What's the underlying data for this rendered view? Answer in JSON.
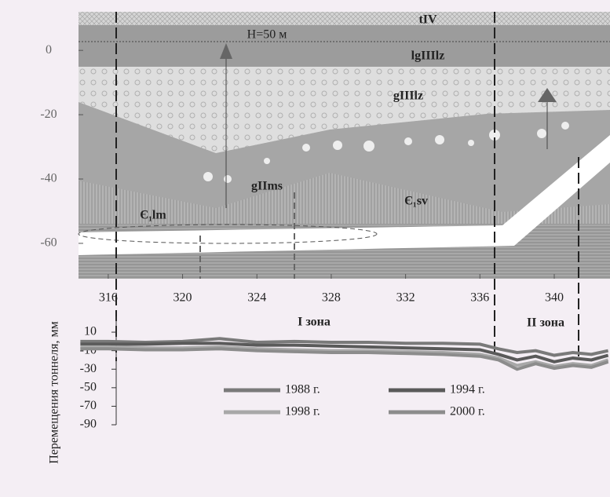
{
  "chart_data": [
    {
      "type": "section",
      "labels": [
        "tIV",
        "H=50 м",
        "lgIIIlz",
        "gIIIlz",
        "gIIms",
        "Є₁sv",
        "Є₁lm"
      ],
      "xlim": [
        314.4,
        343
      ],
      "xticks": [
        316,
        320,
        324,
        328,
        332,
        336,
        340
      ],
      "ylim": [
        -71,
        12
      ],
      "yticks": [
        0,
        -20,
        -40,
        -60
      ]
    },
    {
      "type": "line",
      "y_label": "Перемещения тоннеля, мм",
      "annotations": [
        "I зона",
        "II зона"
      ],
      "x": [
        314.5,
        316,
        318,
        320,
        322,
        324,
        326,
        328,
        330,
        332,
        334,
        336,
        337,
        338,
        339,
        340,
        341,
        342,
        342.9
      ],
      "xlim": [
        314.4,
        343
      ],
      "ylim": [
        -90,
        27
      ],
      "yticks": [
        10,
        -10,
        -30,
        -50,
        -70,
        -90
      ],
      "series": [
        {
          "name": "1988 г.",
          "color": "#7a7a7a",
          "values": [
            0,
            0,
            -1,
            0,
            3,
            -1,
            0,
            -1,
            -1,
            -2,
            -2,
            -3,
            -8,
            -12,
            -10,
            -15,
            -12,
            -14,
            -10
          ]
        },
        {
          "name": "1994 г.",
          "color": "#5a5a5a",
          "values": [
            -3,
            -3,
            -3,
            -2,
            -2,
            -4,
            -4,
            -5,
            -6,
            -7,
            -8,
            -9,
            -14,
            -20,
            -16,
            -22,
            -18,
            -20,
            -15
          ]
        },
        {
          "name": "1998 г.",
          "color": "#a8a8a8",
          "values": [
            -6,
            -6,
            -7,
            -7,
            -6,
            -8,
            -9,
            -10,
            -10,
            -11,
            -12,
            -14,
            -18,
            -26,
            -22,
            -27,
            -24,
            -26,
            -20
          ]
        },
        {
          "name": "2000 г.",
          "color": "#8c8c8c",
          "values": [
            -8,
            -8,
            -9,
            -9,
            -8,
            -10,
            -11,
            -12,
            -12,
            -13,
            -14,
            -16,
            -20,
            -30,
            -24,
            -29,
            -26,
            -28,
            -22
          ]
        }
      ]
    }
  ]
}
